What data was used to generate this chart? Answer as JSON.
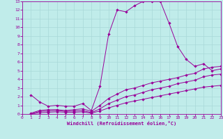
{
  "bg_color": "#c0ecea",
  "grid_color": "#a8d8d8",
  "line_color": "#990099",
  "xlabel": "Windchill (Refroidissement éolien,°C)",
  "xlim": [
    0,
    23
  ],
  "ylim": [
    0,
    13
  ],
  "xticks": [
    0,
    1,
    2,
    3,
    4,
    5,
    6,
    7,
    8,
    9,
    10,
    11,
    12,
    13,
    14,
    15,
    16,
    17,
    18,
    19,
    20,
    21,
    22,
    23
  ],
  "yticks": [
    0,
    1,
    2,
    3,
    4,
    5,
    6,
    7,
    8,
    9,
    10,
    11,
    12,
    13
  ],
  "curve1_x": [
    1,
    2,
    3,
    4,
    5,
    6,
    7,
    8,
    9,
    10,
    11,
    12,
    13,
    14,
    15,
    16,
    17,
    18,
    19,
    20,
    21,
    22,
    23
  ],
  "curve1_y": [
    2.2,
    1.4,
    0.9,
    1.0,
    0.9,
    0.9,
    1.2,
    0.4,
    3.2,
    9.2,
    12.0,
    11.8,
    12.5,
    13.0,
    13.0,
    13.0,
    10.5,
    7.8,
    6.3,
    5.5,
    5.8,
    5.0,
    5.2
  ],
  "curve2_x": [
    1,
    2,
    3,
    4,
    5,
    6,
    7,
    8,
    9,
    10,
    11,
    12,
    13,
    14,
    15,
    16,
    17,
    18,
    19,
    20,
    21,
    22,
    23
  ],
  "curve2_y": [
    0.1,
    0.4,
    0.5,
    0.5,
    0.4,
    0.5,
    0.6,
    0.3,
    1.0,
    1.8,
    2.3,
    2.8,
    3.0,
    3.3,
    3.6,
    3.8,
    4.0,
    4.2,
    4.5,
    4.7,
    5.2,
    5.4,
    5.5
  ],
  "curve3_x": [
    1,
    2,
    3,
    4,
    5,
    6,
    7,
    8,
    9,
    10,
    11,
    12,
    13,
    14,
    15,
    16,
    17,
    18,
    19,
    20,
    21,
    22,
    23
  ],
  "curve3_y": [
    0.0,
    0.3,
    0.35,
    0.4,
    0.3,
    0.35,
    0.4,
    0.15,
    0.6,
    1.2,
    1.6,
    2.0,
    2.2,
    2.5,
    2.8,
    3.0,
    3.2,
    3.5,
    3.7,
    3.9,
    4.3,
    4.5,
    4.6
  ],
  "curve4_x": [
    1,
    2,
    3,
    4,
    5,
    6,
    7,
    8,
    9,
    10,
    11,
    12,
    13,
    14,
    15,
    16,
    17,
    18,
    19,
    20,
    21,
    22,
    23
  ],
  "curve4_y": [
    0.0,
    0.15,
    0.2,
    0.25,
    0.2,
    0.2,
    0.25,
    0.1,
    0.35,
    0.7,
    1.0,
    1.3,
    1.5,
    1.7,
    1.9,
    2.1,
    2.3,
    2.5,
    2.7,
    2.9,
    3.1,
    3.2,
    3.3
  ]
}
